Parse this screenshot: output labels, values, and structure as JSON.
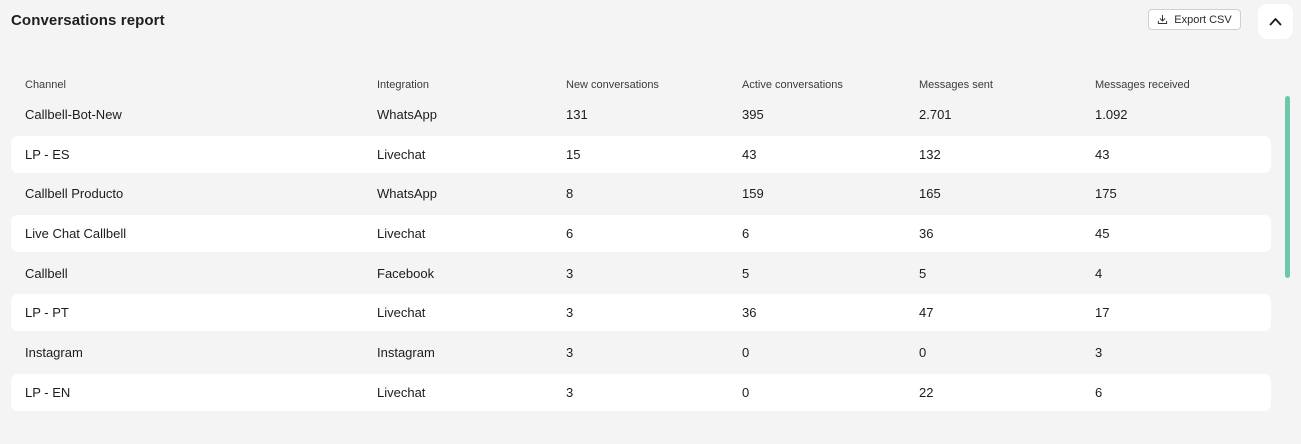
{
  "header": {
    "title": "Conversations report",
    "export_label": "Export CSV"
  },
  "table": {
    "columns": [
      "Channel",
      "Integration",
      "New conversations",
      "Active conversations",
      "Messages sent",
      "Messages received"
    ],
    "rows": [
      [
        "Callbell-Bot-New",
        "WhatsApp",
        "131",
        "395",
        "2.701",
        "1.092"
      ],
      [
        "LP - ES",
        "Livechat",
        "15",
        "43",
        "132",
        "43"
      ],
      [
        "Callbell Producto",
        "WhatsApp",
        "8",
        "159",
        "165",
        "175"
      ],
      [
        "Live Chat Callbell",
        "Livechat",
        "6",
        "6",
        "36",
        "45"
      ],
      [
        "Callbell",
        "Facebook",
        "3",
        "5",
        "5",
        "4"
      ],
      [
        "LP - PT",
        "Livechat",
        "3",
        "36",
        "47",
        "17"
      ],
      [
        "Instagram",
        "Instagram",
        "3",
        "0",
        "0",
        "3"
      ],
      [
        "LP - EN",
        "Livechat",
        "3",
        "0",
        "22",
        "6"
      ]
    ]
  },
  "icons": {
    "export": "download-icon",
    "collapse": "chevron-up-icon"
  },
  "colors": {
    "background": "#f4f4f4",
    "row_alt": "#ffffff",
    "scrollbar": "#6cc7ad"
  }
}
